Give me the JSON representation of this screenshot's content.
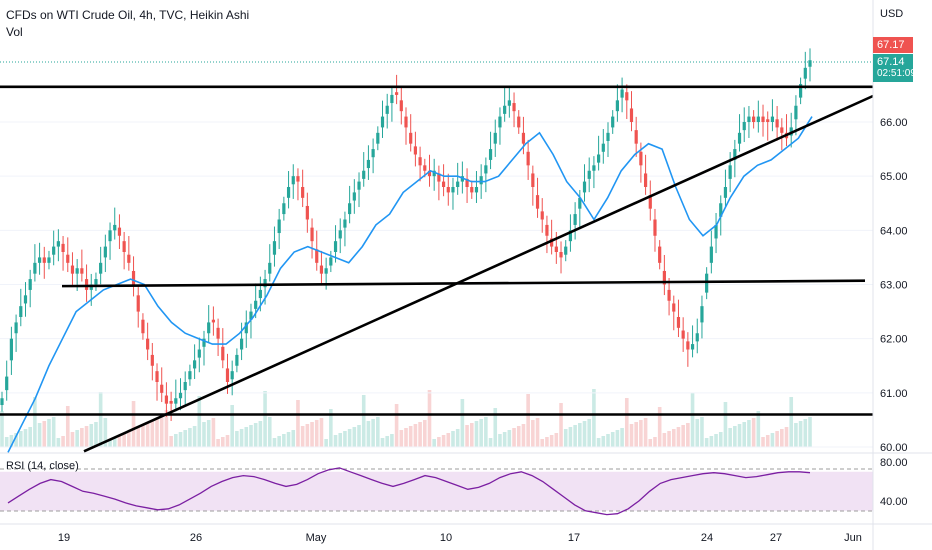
{
  "header": {
    "title": "CFDs on WTI Crude Oil, 4h, TVC, Heikin Ashi",
    "volume_label": "Vol",
    "currency": "USD",
    "rsi_label": "RSI (14, close)"
  },
  "price_tags": {
    "current_price": "67.17",
    "last_price": "67.14",
    "countdown": "02:51:09"
  },
  "colors": {
    "up": "#26a69a",
    "down": "#ef5350",
    "ma": "#2196f3",
    "rsi": "#7b1fa2",
    "rsi_band": "#e1bee7",
    "trendline": "#000000"
  },
  "chart_data": {
    "type": "candlestick",
    "title": "CFDs on WTI Crude Oil, 4h, TVC, Heikin Ashi",
    "y_ticks": [
      "60.00",
      "61.00",
      "62.00",
      "63.00",
      "64.00",
      "65.00",
      "66.00"
    ],
    "ylim": [
      59.95,
      68.15
    ],
    "x_ticks": [
      "19",
      "26",
      "May",
      "10",
      "17",
      "24",
      "27",
      "Jun"
    ],
    "rsi_ticks": [
      "80.00",
      "40.00"
    ],
    "rsi_range": [
      20,
      90
    ],
    "rsi_band": [
      30,
      70
    ],
    "closes": [
      60.9,
      61.3,
      62.0,
      62.3,
      62.6,
      62.8,
      63.1,
      63.4,
      63.5,
      63.4,
      63.5,
      63.7,
      63.8,
      63.6,
      63.4,
      63.2,
      63.3,
      63.2,
      62.9,
      63.0,
      63.1,
      63.4,
      63.7,
      64.0,
      64.1,
      63.9,
      63.6,
      63.4,
      63.0,
      62.5,
      62.1,
      61.8,
      61.5,
      61.2,
      61.0,
      60.8,
      60.8,
      60.9,
      61.0,
      61.2,
      61.4,
      61.6,
      61.8,
      62.0,
      62.3,
      62.3,
      62.0,
      61.6,
      61.2,
      61.4,
      61.7,
      62.0,
      62.3,
      62.5,
      62.7,
      62.9,
      63.1,
      63.4,
      63.8,
      64.2,
      64.5,
      64.8,
      65.0,
      64.9,
      64.6,
      64.2,
      63.8,
      63.4,
      63.2,
      63.3,
      63.5,
      63.8,
      64.0,
      64.2,
      64.5,
      64.7,
      64.9,
      65.1,
      65.3,
      65.5,
      65.8,
      66.1,
      66.3,
      66.5,
      66.5,
      66.2,
      65.9,
      65.6,
      65.4,
      65.2,
      65.1,
      65.0,
      65.1,
      64.9,
      64.8,
      64.7,
      64.8,
      64.9,
      65.0,
      64.8,
      64.7,
      64.8,
      65.0,
      65.2,
      65.5,
      65.8,
      66.1,
      66.3,
      66.4,
      66.2,
      65.9,
      65.6,
      65.2,
      64.8,
      64.4,
      64.2,
      63.9,
      63.7,
      63.6,
      63.5,
      63.7,
      64.0,
      64.3,
      64.6,
      64.9,
      65.1,
      65.2,
      65.4,
      65.6,
      65.8,
      66.1,
      66.4,
      66.6,
      66.4,
      66.0,
      65.6,
      65.2,
      64.8,
      64.4,
      63.9,
      63.4,
      63.0,
      62.7,
      62.5,
      62.2,
      62.0,
      61.8,
      61.9,
      62.1,
      62.6,
      63.2,
      63.7,
      64.1,
      64.5,
      64.8,
      65.2,
      65.5,
      65.8,
      66.0,
      66.1,
      66.0,
      66.1,
      66.0,
      66.0,
      66.1,
      65.9,
      65.8,
      65.7,
      65.9,
      66.3,
      66.7,
      67.0,
      67.14
    ],
    "ma_closes": [
      59.9,
      60.4,
      60.9,
      61.5,
      62.0,
      62.5,
      62.7,
      62.9,
      63.0,
      63.1,
      63.0,
      62.6,
      62.3,
      62.1,
      62.0,
      61.9,
      61.9,
      62.1,
      62.4,
      62.8,
      63.3,
      63.6,
      63.7,
      63.6,
      63.5,
      63.4,
      63.7,
      64.1,
      64.3,
      64.7,
      64.9,
      65.1,
      65.0,
      65.0,
      64.9,
      64.9,
      65.0,
      65.3,
      65.6,
      65.8,
      65.4,
      64.9,
      64.6,
      64.2,
      64.6,
      65.1,
      65.4,
      65.6,
      65.5,
      64.8,
      64.2,
      63.9,
      64.1,
      64.6,
      65.0,
      65.2,
      65.3,
      65.5,
      65.7,
      66.1
    ],
    "rsi_values": [
      38,
      45,
      52,
      58,
      62,
      60,
      55,
      50,
      48,
      45,
      42,
      38,
      35,
      33,
      31,
      32,
      36,
      42,
      48,
      55,
      60,
      64,
      66,
      65,
      62,
      58,
      55,
      57,
      62,
      68,
      72,
      74,
      70,
      66,
      62,
      58,
      55,
      58,
      62,
      66,
      64,
      60,
      56,
      52,
      54,
      58,
      64,
      68,
      70,
      66,
      60,
      52,
      44,
      36,
      30,
      28,
      26,
      27,
      32,
      40,
      50,
      58,
      62,
      64,
      66,
      68,
      69,
      68,
      66,
      64,
      65,
      67,
      69,
      70,
      70,
      69
    ]
  }
}
